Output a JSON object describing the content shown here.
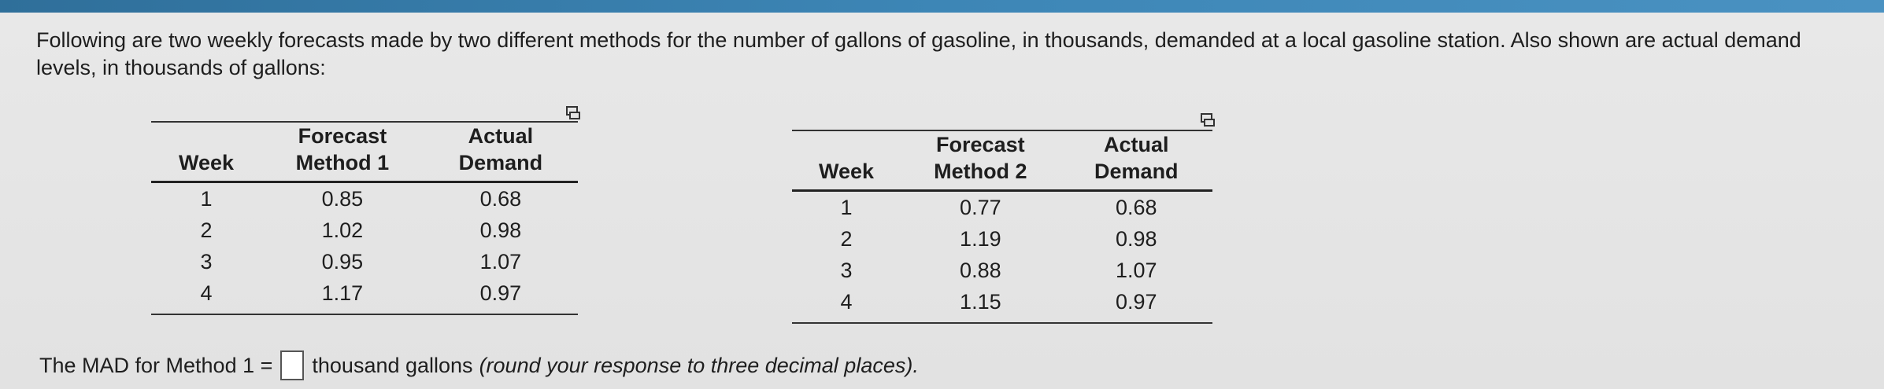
{
  "problem": {
    "intro": "Following are two weekly forecasts made by two different methods for the number of gallons of gasoline, in thousands, demanded at a local gasoline station. Also shown are actual demand levels, in thousands of gallons:"
  },
  "table1": {
    "headers": {
      "week": "Week",
      "forecast_line1": "Forecast",
      "forecast_line2": "Method 1",
      "actual_line1": "Actual",
      "actual_line2": "Demand"
    },
    "rows": [
      {
        "week": "1",
        "forecast": "0.85",
        "actual": "0.68"
      },
      {
        "week": "2",
        "forecast": "1.02",
        "actual": "0.98"
      },
      {
        "week": "3",
        "forecast": "0.95",
        "actual": "1.07"
      },
      {
        "week": "4",
        "forecast": "1.17",
        "actual": "0.97"
      }
    ]
  },
  "table2": {
    "headers": {
      "week": "Week",
      "forecast_line1": "Forecast",
      "forecast_line2": "Method 2",
      "actual_line1": "Actual",
      "actual_line2": "Demand"
    },
    "rows": [
      {
        "week": "1",
        "forecast": "0.77",
        "actual": "0.68"
      },
      {
        "week": "2",
        "forecast": "1.19",
        "actual": "0.98"
      },
      {
        "week": "3",
        "forecast": "0.88",
        "actual": "1.07"
      },
      {
        "week": "4",
        "forecast": "1.15",
        "actual": "0.97"
      }
    ]
  },
  "question": {
    "prefix": "The MAD for Method 1 =",
    "answer_value": "",
    "unit": "thousand gallons",
    "note": "(round your response to three decimal places)."
  },
  "icons": {
    "copy": "copy-table-icon"
  }
}
